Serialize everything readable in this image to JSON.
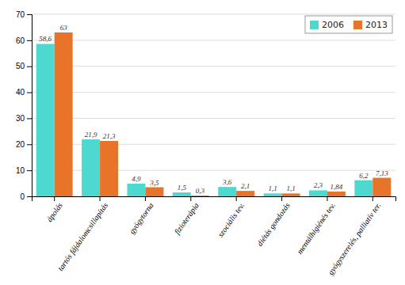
{
  "chart_data": {
    "type": "bar",
    "categories": [
      "ápolás",
      "tartós fájdalomcsillapítás",
      "gyógytorna",
      "fizioterápia",
      "szociális tev.",
      "diétás gondozás",
      "mentálhigiénés tev.",
      "gyógyszerelés, palliatív ter."
    ],
    "series": [
      {
        "name": "2006",
        "color": "#4DD9D0",
        "values": [
          58.6,
          21.9,
          4.9,
          1.5,
          3.6,
          1.1,
          2.3,
          6.2
        ],
        "value_labels": [
          "58,6",
          "21,9",
          "4,9",
          "1,5",
          "3,6",
          "1,1",
          "2,3",
          "6,2"
        ]
      },
      {
        "name": "2013",
        "color": "#E8742A",
        "values": [
          63.0,
          21.3,
          3.5,
          0.3,
          2.1,
          1.1,
          1.84,
          7.13
        ],
        "value_labels": [
          "63",
          "21,3",
          "3,5",
          "0,3",
          "2,1",
          "1,1",
          "1,84",
          "7,13"
        ]
      }
    ],
    "ylim": [
      0,
      70
    ],
    "yticks": [
      0,
      10,
      20,
      30,
      40,
      50,
      60,
      70
    ],
    "grid": true,
    "legend": "upper right",
    "data_labels": true
  }
}
